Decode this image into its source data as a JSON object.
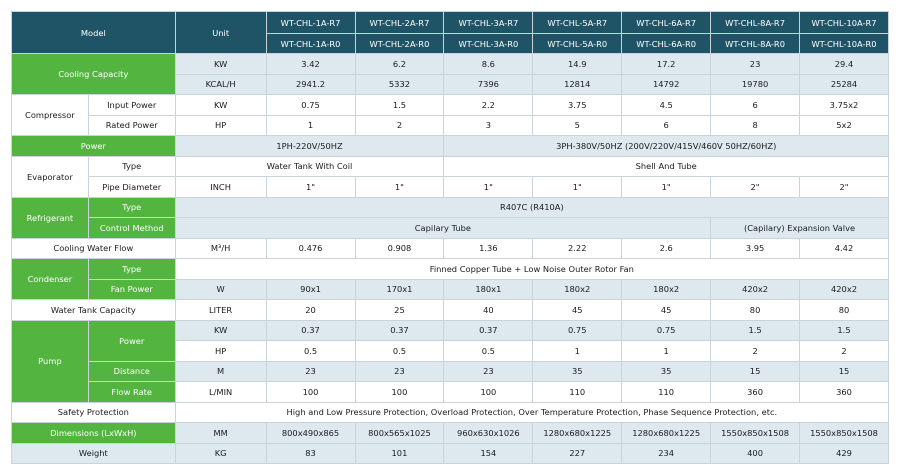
{
  "header": {
    "model_label": "Model",
    "unit_label": "Unit",
    "models_r7": [
      "WT-CHL-1A-R7",
      "WT-CHL-2A-R7",
      "WT-CHL-3A-R7",
      "WT-CHL-5A-R7",
      "WT-CHL-6A-R7",
      "WT-CHL-8A-R7",
      "WT-CHL-10A-R7"
    ],
    "models_r0": [
      "WT-CHL-1A-R0",
      "WT-CHL-2A-R0",
      "WT-CHL-3A-R0",
      "WT-CHL-5A-R0",
      "WT-CHL-6A-R0",
      "WT-CHL-8A-R0",
      "WT-CHL-10A-R0"
    ]
  },
  "cooling": {
    "label": "Cooling Capacity",
    "kw_unit": "KW",
    "kw": [
      "3.42",
      "6.2",
      "8.6",
      "14.9",
      "17.2",
      "23",
      "29.4"
    ],
    "kcal_unit": "KCAL/H",
    "kcal": [
      "2941.2",
      "5332",
      "7396",
      "12814",
      "14792",
      "19780",
      "25284"
    ]
  },
  "compressor": {
    "label": "Compressor",
    "input_label": "Input Power",
    "input_unit": "KW",
    "input": [
      "0.75",
      "1.5",
      "2.2",
      "3.75",
      "4.5",
      "6",
      "3.75x2"
    ],
    "rated_label": "Rated Power",
    "rated_unit": "HP",
    "rated": [
      "1",
      "2",
      "3",
      "5",
      "6",
      "8",
      "5x2"
    ]
  },
  "power": {
    "label": "Power",
    "single": "1PH-220V/50HZ",
    "three": "3PH-380V/50HZ (200V/220V/415V/460V  50HZ/60HZ)"
  },
  "evaporator": {
    "label": "Evaporator",
    "type_label": "Type",
    "type_coil": "Water Tank With Coil",
    "type_shell": "Shell And Tube",
    "pipe_label": "Pipe Diameter",
    "pipe_unit": "INCH",
    "pipe": [
      "1\"",
      "1\"",
      "1\"",
      "1\"",
      "1\"",
      "2\"",
      "2\""
    ]
  },
  "refrigerant": {
    "label": "Refrigerant",
    "type_label": "Type",
    "type_value": "R407C (R410A)",
    "control_label": "Control Method",
    "control_capillary": "Capilary Tube",
    "control_expansion": "(Capilary) Expansion Valve"
  },
  "cooling_water": {
    "label": "Cooling Water Flow",
    "unit": "M³/H",
    "values": [
      "0.476",
      "0.908",
      "1.36",
      "2.22",
      "2.6",
      "3.95",
      "4.42"
    ]
  },
  "condenser": {
    "label": "Condenser",
    "type_label": "Type",
    "type_value": "Finned Copper Tube + Low Noise Outer Rotor Fan",
    "fan_label": "Fan Power",
    "fan_unit": "W",
    "fan": [
      "90x1",
      "170x1",
      "180x1",
      "180x2",
      "180x2",
      "420x2",
      "420x2"
    ]
  },
  "tank": {
    "label": "Water Tank Capacity",
    "unit": "LITER",
    "values": [
      "20",
      "25",
      "40",
      "45",
      "45",
      "80",
      "80"
    ]
  },
  "pump": {
    "label": "Pump",
    "power_label": "Power",
    "kw_unit": "KW",
    "kw": [
      "0.37",
      "0.37",
      "0.37",
      "0.75",
      "0.75",
      "1.5",
      "1.5"
    ],
    "hp_unit": "HP",
    "hp": [
      "0.5",
      "0.5",
      "0.5",
      "1",
      "1",
      "2",
      "2"
    ],
    "distance_label": "Distance",
    "distance_unit": "M",
    "distance": [
      "23",
      "23",
      "23",
      "35",
      "35",
      "15",
      "15"
    ],
    "flow_label": "Flow Rate",
    "flow_unit": "L/MIN",
    "flow": [
      "100",
      "100",
      "100",
      "110",
      "110",
      "360",
      "360"
    ]
  },
  "safety": {
    "label": "Safety Protection",
    "value": "High and Low Pressure Protection, Overload Protection, Over Temperature Protection, Phase Sequence Protection, etc."
  },
  "dimensions": {
    "label": "Dimensions (LxWxH)",
    "unit": "MM",
    "values": [
      "800x490x865",
      "800x565x1025",
      "960x630x1026",
      "1280x680x1225",
      "1280x680x1225",
      "1550x850x1508",
      "1550x850x1508"
    ]
  },
  "weight": {
    "label": "Weight",
    "unit": "KG",
    "values": [
      "83",
      "101",
      "154",
      "227",
      "234",
      "400",
      "429"
    ]
  }
}
